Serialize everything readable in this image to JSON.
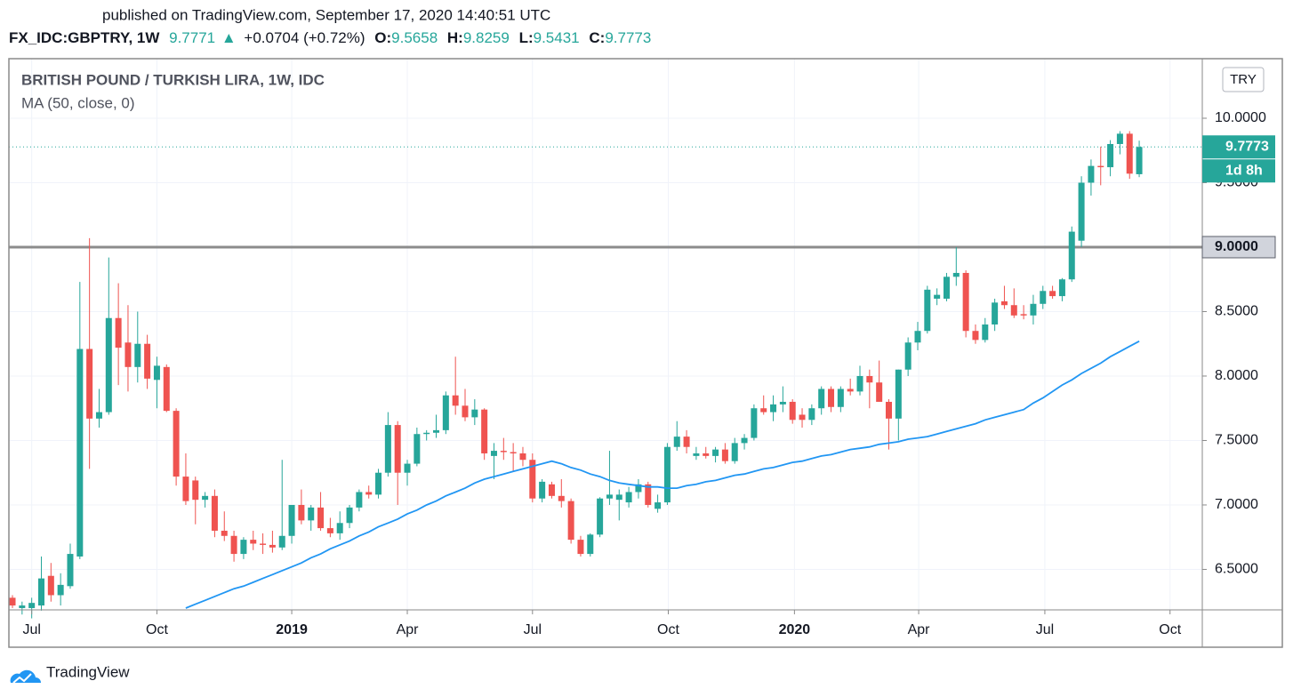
{
  "header": {
    "published": "published on TradingView.com, September 17, 2020 14:40:51 UTC",
    "symbol": "FX_IDC:GBPTRY, 1W",
    "last": "9.7771",
    "arrow": "▲",
    "change": "+0.0704 (+0.72%)",
    "o_label": "O:",
    "o": "9.5658",
    "h_label": "H:",
    "h": "9.8259",
    "l_label": "L:",
    "l": "9.5431",
    "c_label": "C:",
    "c": "9.7773"
  },
  "chart_data": {
    "type": "candlestick",
    "title": "BRITISH POUND / TURKISH LIRA, 1W, IDC",
    "currency": "TRY",
    "up_color": "#26a69a",
    "down_color": "#ef5350",
    "xlim": [
      -0.37,
      123.55
    ],
    "xticks": [
      {
        "value": 2,
        "label": "Jul"
      },
      {
        "value": 15,
        "label": "Oct"
      },
      {
        "value": 29,
        "label": "2019"
      },
      {
        "value": 41,
        "label": "Apr"
      },
      {
        "value": 54,
        "label": "Jul"
      },
      {
        "value": 68.1,
        "label": "Oct"
      },
      {
        "value": 81.2,
        "label": "2020"
      },
      {
        "value": 94.1,
        "label": "Apr"
      },
      {
        "value": 107.2,
        "label": "Jul"
      },
      {
        "value": 120.2,
        "label": "Oct"
      }
    ],
    "ylim": [
      6.186,
      10.462
    ],
    "yticks": [
      {
        "value": 6.5,
        "label": "6.5000"
      },
      {
        "value": 7,
        "label": "7.0000"
      },
      {
        "value": 7.5,
        "label": "7.5000"
      },
      {
        "value": 8,
        "label": "8.0000"
      },
      {
        "value": 8.5,
        "label": "8.5000"
      },
      {
        "value": 9,
        "label": "9.0000"
      },
      {
        "value": 9.5,
        "label": "9.5000"
      },
      {
        "value": 10,
        "label": "10.0000"
      }
    ],
    "grid": true,
    "hline": {
      "value": 9,
      "label": "9.0000",
      "color": "#8c8c8c"
    },
    "last_price": {
      "value": 9.7773,
      "label": "9.7773"
    },
    "countdown": "1d 8h",
    "open": [
      6.28,
      6.2,
      6.2,
      6.22,
      6.45,
      6.3,
      6.37,
      6.6,
      8.21,
      7.67,
      7.72,
      8.45,
      8.26,
      8.07,
      8.25,
      7.97,
      8.07,
      7.73,
      7.22,
      7.19,
      7.04,
      7.07,
      6.8,
      6.76,
      6.62,
      6.73,
      6.7,
      6.69,
      6.67,
      6.76,
      7.0,
      6.88,
      6.98,
      6.82,
      6.78,
      6.86,
      6.98,
      7.1,
      7.08,
      7.25,
      7.62,
      7.25,
      7.32,
      7.55,
      7.56,
      7.58,
      7.85,
      7.77,
      7.68,
      7.74,
      7.38,
      7.42,
      7.41,
      7.4,
      7.35,
      7.05,
      7.16,
      7.07,
      7.03,
      6.73,
      6.62,
      6.77,
      7.05,
      7.04,
      7.02,
      7.1,
      7.16,
      6.97,
      7.02,
      7.45,
      7.53,
      7.38,
      7.4,
      7.38,
      7.43,
      7.34,
      7.48,
      7.52,
      7.75,
      7.72,
      7.78,
      7.8,
      7.7,
      7.66,
      7.75,
      7.9,
      7.76,
      7.9,
      7.88,
      8.0,
      7.95,
      7.8,
      7.67,
      8.05,
      8.26,
      8.35,
      8.6,
      8.6,
      8.77,
      8.8,
      8.35,
      8.28,
      8.4,
      8.58,
      8.55,
      8.48,
      8.47,
      8.56,
      8.66,
      8.62,
      8.75,
      9.05,
      9.5,
      9.63,
      9.62,
      9.8,
      9.88,
      9.5658
    ],
    "high": [
      6.3,
      6.25,
      6.28,
      6.6,
      6.55,
      6.47,
      6.7,
      8.73,
      9.07,
      7.9,
      8.92,
      8.72,
      8.55,
      8.5,
      8.32,
      8.15,
      8.09,
      7.75,
      7.4,
      7.22,
      7.1,
      7.12,
      6.95,
      6.8,
      6.75,
      6.8,
      6.78,
      6.8,
      7.35,
      7.0,
      7.12,
      7.0,
      7.1,
      6.9,
      6.95,
      7.0,
      7.12,
      7.15,
      7.28,
      7.72,
      7.65,
      7.35,
      7.6,
      7.58,
      7.7,
      7.88,
      8.15,
      7.9,
      7.82,
      7.75,
      7.48,
      7.52,
      7.48,
      7.45,
      7.4,
      7.2,
      7.18,
      7.2,
      7.05,
      6.76,
      6.78,
      7.06,
      7.42,
      7.12,
      7.14,
      7.2,
      7.18,
      7.08,
      7.48,
      7.65,
      7.58,
      7.45,
      7.45,
      7.45,
      7.48,
      7.52,
      7.55,
      7.78,
      7.85,
      7.85,
      7.92,
      7.82,
      7.75,
      7.78,
      7.92,
      7.92,
      7.92,
      7.98,
      8.08,
      8.05,
      8.12,
      7.82,
      8.05,
      8.3,
      8.42,
      8.7,
      8.68,
      8.8,
      9.0,
      8.82,
      8.4,
      8.45,
      8.6,
      8.7,
      8.68,
      8.55,
      8.63,
      8.7,
      8.7,
      8.76,
      9.16,
      9.55,
      9.68,
      9.78,
      9.83,
      9.9,
      9.9,
      9.8259
    ],
    "low": [
      6.2,
      6.15,
      6.12,
      6.18,
      6.25,
      6.22,
      6.35,
      6.58,
      7.28,
      7.6,
      7.7,
      7.93,
      7.88,
      7.95,
      7.9,
      7.75,
      7.72,
      7.15,
      7.0,
      6.85,
      6.98,
      6.75,
      6.72,
      6.56,
      6.58,
      6.65,
      6.62,
      6.63,
      6.65,
      6.7,
      6.85,
      6.8,
      6.8,
      6.75,
      6.73,
      6.82,
      6.95,
      7.05,
      7.05,
      7.22,
      7.0,
      7.15,
      7.3,
      7.5,
      7.52,
      7.55,
      7.7,
      7.65,
      7.62,
      7.35,
      7.2,
      7.35,
      7.26,
      7.3,
      7.02,
      7.02,
      7.05,
      6.98,
      6.7,
      6.6,
      6.6,
      6.75,
      7.0,
      6.88,
      6.98,
      7.05,
      6.98,
      6.94,
      7.0,
      7.42,
      7.4,
      7.35,
      7.36,
      7.33,
      7.32,
      7.32,
      7.43,
      7.5,
      7.7,
      7.65,
      7.72,
      7.63,
      7.6,
      7.62,
      7.7,
      7.72,
      7.72,
      7.85,
      7.85,
      7.75,
      7.8,
      7.43,
      7.5,
      8.0,
      8.2,
      8.33,
      8.55,
      8.58,
      8.7,
      8.3,
      8.25,
      8.26,
      8.35,
      8.52,
      8.45,
      8.44,
      8.4,
      8.52,
      8.6,
      8.58,
      8.73,
      9.0,
      9.4,
      9.48,
      9.55,
      9.72,
      9.53,
      9.5431
    ],
    "close": [
      6.22,
      6.22,
      6.24,
      6.43,
      6.3,
      6.38,
      6.62,
      8.21,
      7.67,
      7.72,
      8.45,
      8.22,
      8.07,
      8.25,
      7.98,
      8.08,
      7.73,
      7.22,
      7.03,
      7.04,
      7.07,
      6.8,
      6.76,
      6.62,
      6.73,
      6.7,
      6.69,
      6.67,
      6.76,
      7.0,
      6.88,
      6.98,
      6.82,
      6.78,
      6.86,
      6.98,
      7.1,
      7.08,
      7.25,
      7.62,
      7.25,
      7.32,
      7.55,
      7.56,
      7.58,
      7.85,
      7.77,
      7.68,
      7.74,
      7.4,
      7.42,
      7.41,
      7.4,
      7.35,
      7.05,
      7.18,
      7.07,
      7.03,
      6.73,
      6.62,
      6.77,
      7.05,
      7.08,
      7.08,
      7.1,
      7.16,
      7.0,
      7.02,
      7.45,
      7.53,
      7.45,
      7.4,
      7.38,
      7.43,
      7.34,
      7.48,
      7.52,
      7.75,
      7.72,
      7.78,
      7.8,
      7.66,
      7.66,
      7.75,
      7.9,
      7.76,
      7.9,
      7.88,
      8.0,
      7.95,
      7.8,
      7.67,
      8.05,
      8.26,
      8.35,
      8.67,
      8.63,
      8.77,
      8.8,
      8.35,
      8.28,
      8.4,
      8.57,
      8.55,
      8.47,
      8.47,
      8.56,
      8.66,
      8.62,
      8.75,
      9.12,
      9.5,
      9.63,
      9.62,
      9.8,
      9.88,
      9.57,
      9.7773
    ],
    "ma": {
      "name": "MA (50, close, 0)",
      "color": "#2196f3",
      "values": [
        null,
        null,
        null,
        null,
        null,
        null,
        null,
        null,
        null,
        null,
        null,
        null,
        null,
        null,
        null,
        null,
        null,
        null,
        6.2,
        6.23,
        6.26,
        6.29,
        6.32,
        6.35,
        6.37,
        6.4,
        6.43,
        6.46,
        6.49,
        6.52,
        6.55,
        6.59,
        6.62,
        6.66,
        6.69,
        6.72,
        6.76,
        6.79,
        6.83,
        6.86,
        6.89,
        6.93,
        6.96,
        7.0,
        7.03,
        7.07,
        7.1,
        7.13,
        7.17,
        7.2,
        7.22,
        7.24,
        7.26,
        7.28,
        7.3,
        7.32,
        7.34,
        7.32,
        7.29,
        7.27,
        7.24,
        7.22,
        7.19,
        7.17,
        7.16,
        7.15,
        7.14,
        7.14,
        7.13,
        7.13,
        7.15,
        7.16,
        7.18,
        7.19,
        7.21,
        7.23,
        7.24,
        7.26,
        7.28,
        7.29,
        7.31,
        7.33,
        7.34,
        7.36,
        7.38,
        7.39,
        7.41,
        7.43,
        7.44,
        7.45,
        7.47,
        7.48,
        7.49,
        7.51,
        7.52,
        7.53,
        7.55,
        7.57,
        7.59,
        7.61,
        7.63,
        7.66,
        7.68,
        7.7,
        7.72,
        7.74,
        7.79,
        7.83,
        7.88,
        7.93,
        7.97,
        8.02,
        8.06,
        8.1,
        8.15,
        8.19,
        8.23,
        8.27
      ]
    }
  },
  "footer": {
    "brand": "TradingView"
  }
}
